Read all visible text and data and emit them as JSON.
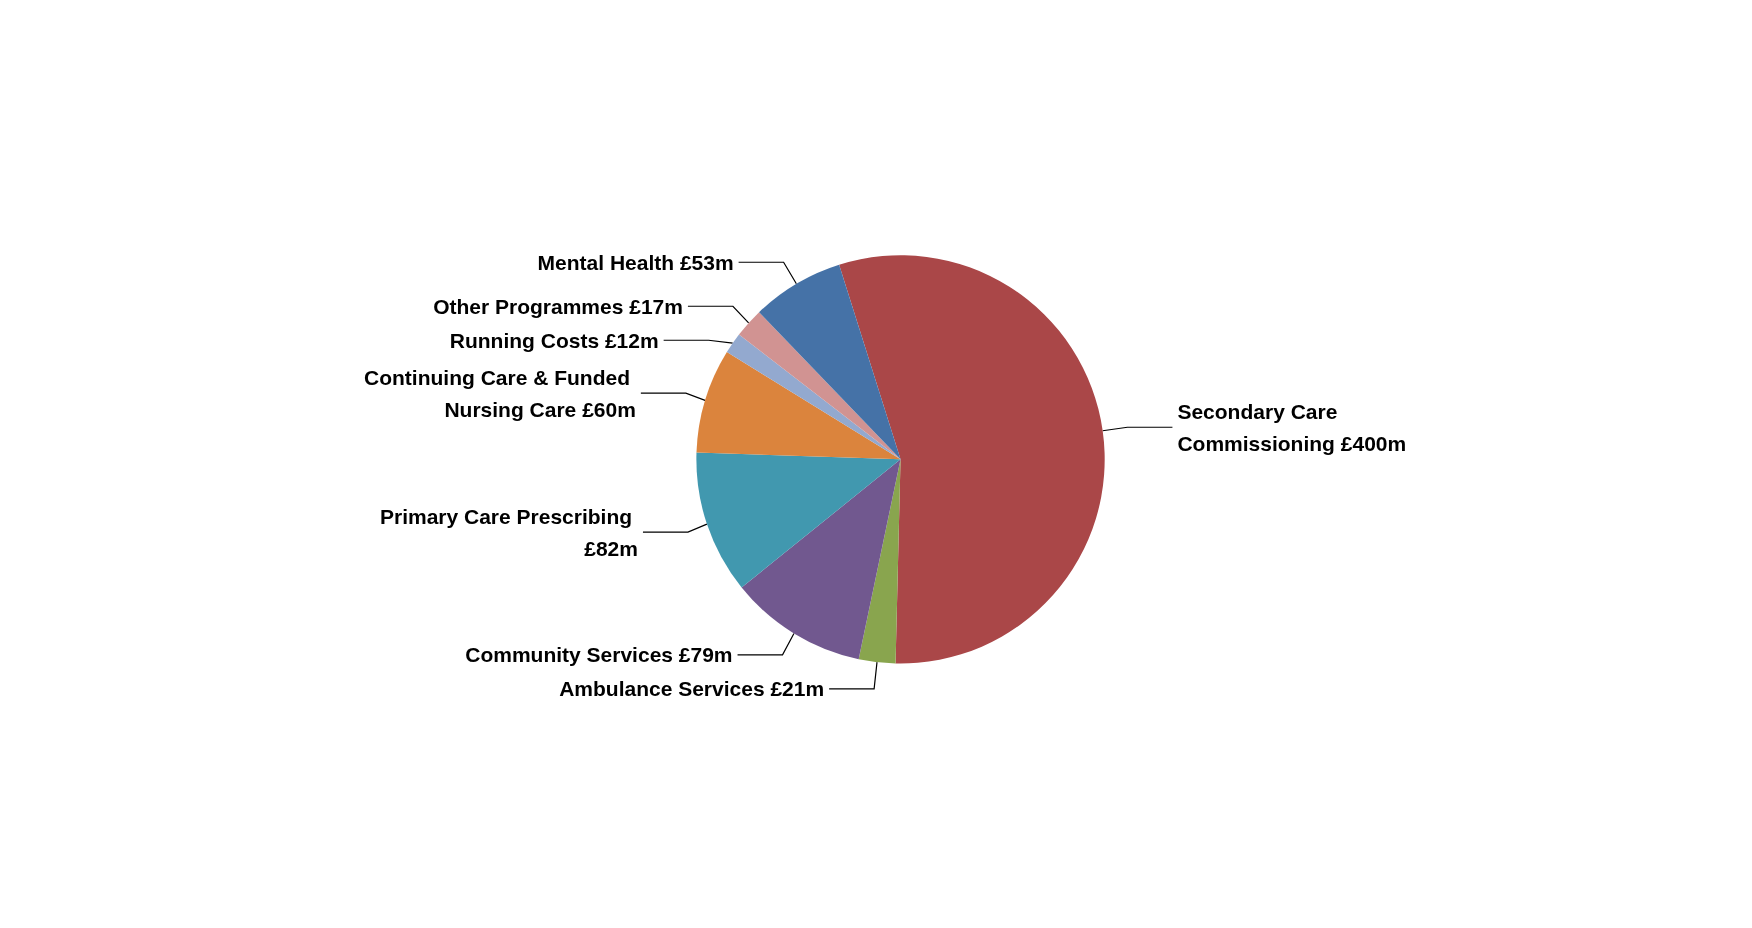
{
  "chart_data": {
    "type": "pie",
    "categories": [
      "Secondary Care Commissioning",
      "Ambulance Services",
      "Community Services",
      "Primary Care Prescribing",
      "Continuing Care & Funded Nursing Care",
      "Running Costs",
      "Other Programmes",
      "Mental Health"
    ],
    "values": [
      400,
      21,
      79,
      82,
      60,
      12,
      17,
      53
    ],
    "value_labels": [
      "£400m",
      "£21m",
      "£79m",
      "£82m",
      "£60m",
      "£12m",
      "£17m",
      "£53m"
    ],
    "colors": [
      "#aa4748",
      "#89a54e",
      "#71588f",
      "#4198af",
      "#db843d",
      "#93a9cf",
      "#d19392",
      "#4572a7"
    ],
    "legend": false
  }
}
